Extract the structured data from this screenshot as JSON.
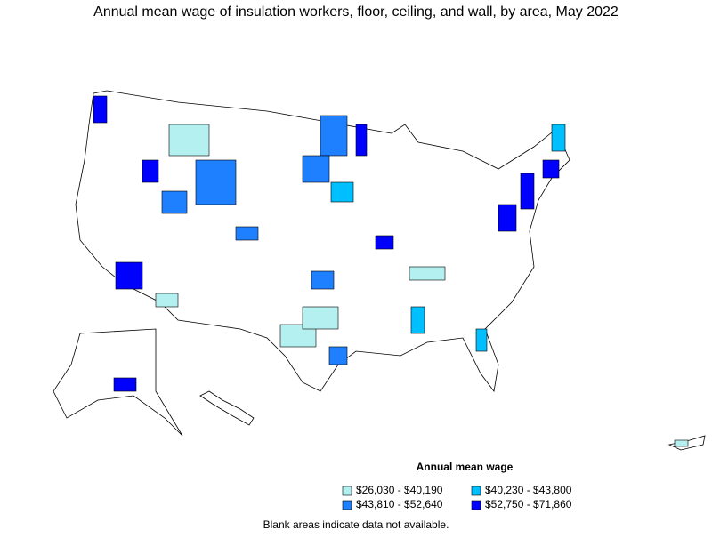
{
  "title": "Annual mean wage of insulation workers, floor, ceiling, and wall, by area, May 2022",
  "legend": {
    "title": "Annual mean wage",
    "items": [
      {
        "label": "$26,030 - $40,190",
        "color": "#b4f0f0"
      },
      {
        "label": "$40,230 - $43,800",
        "color": "#00bfff"
      },
      {
        "label": "$43,810 - $52,640",
        "color": "#1e7fff"
      },
      {
        "label": "$52,750 - $71,860",
        "color": "#0000ff"
      }
    ]
  },
  "note": "Blank areas indicate data not available."
}
